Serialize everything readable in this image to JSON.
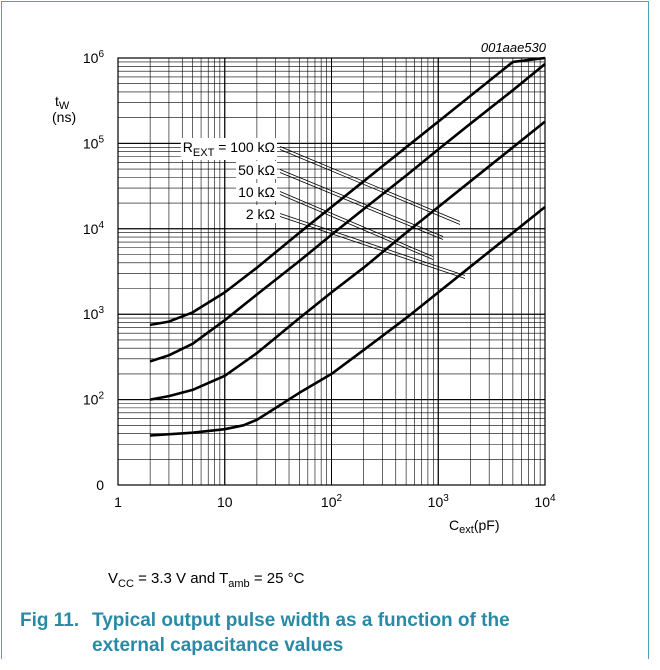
{
  "chart_data": {
    "type": "line",
    "code": "001aae530",
    "ylabel": {
      "symbol": "t",
      "sub": "W",
      "unit": "(ns)"
    },
    "xlabel": {
      "symbol": "C",
      "sub": "ext",
      "unit": "(pF)"
    },
    "x_scale": "log",
    "y_scale": "log",
    "xlim": [
      1,
      10000
    ],
    "ylim": [
      10,
      1000000
    ],
    "x_ticks": [
      {
        "value": 1,
        "base": "1",
        "exp": ""
      },
      {
        "value": 10,
        "base": "10",
        "exp": ""
      },
      {
        "value": 100,
        "base": "10",
        "exp": "2"
      },
      {
        "value": 1000,
        "base": "10",
        "exp": "3"
      },
      {
        "value": 10000,
        "base": "10",
        "exp": "4"
      }
    ],
    "y_ticks": [
      {
        "value": 10,
        "base": "0",
        "exp": ""
      },
      {
        "value": 100,
        "base": "10",
        "exp": "2"
      },
      {
        "value": 1000,
        "base": "10",
        "exp": "3"
      },
      {
        "value": 10000,
        "base": "10",
        "exp": "4"
      },
      {
        "value": 100000,
        "base": "10",
        "exp": "5"
      },
      {
        "value": 1000000,
        "base": "10",
        "exp": "6"
      }
    ],
    "grid": true,
    "series": [
      {
        "name": "REXT = 100 kΩ",
        "label_main": "R",
        "label_sub": "EXT",
        "label_value": " = 100 kΩ",
        "x": [
          2,
          3,
          5,
          10,
          20,
          50,
          100,
          200,
          500,
          1000,
          2000,
          5000,
          10000
        ],
        "y": [
          750,
          820,
          1050,
          1800,
          3500,
          9000,
          18000,
          36000,
          90000,
          180000,
          360000,
          900000,
          1800000
        ]
      },
      {
        "name": "50 kΩ",
        "label_main": "",
        "label_sub": "",
        "label_value": "50 kΩ",
        "x": [
          2,
          3,
          5,
          10,
          20,
          50,
          100,
          200,
          500,
          1000,
          2000,
          5000,
          10000
        ],
        "y": [
          280,
          330,
          450,
          850,
          1700,
          4200,
          8500,
          17000,
          42000,
          85000,
          170000,
          420000,
          850000
        ]
      },
      {
        "name": "10 kΩ",
        "label_main": "",
        "label_sub": "",
        "label_value": "10 kΩ",
        "x": [
          2,
          3,
          5,
          10,
          20,
          50,
          100,
          200,
          500,
          1000,
          2000,
          5000,
          10000
        ],
        "y": [
          100,
          110,
          130,
          190,
          350,
          900,
          1800,
          3500,
          9000,
          18000,
          36000,
          90000,
          180000
        ]
      },
      {
        "name": "2 kΩ",
        "label_main": "",
        "label_sub": "",
        "label_value": "2 kΩ",
        "x": [
          2,
          5,
          10,
          15,
          20,
          30,
          50,
          100,
          200,
          500,
          1000,
          2000,
          5000,
          10000
        ],
        "y": [
          38,
          41,
          45,
          50,
          58,
          80,
          120,
          200,
          380,
          900,
          1800,
          3600,
          9000,
          18000
        ]
      }
    ]
  },
  "conditions": {
    "vcc_main": "V",
    "vcc_sub": "CC",
    "vcc_value": " = 3.3 V and T",
    "tamb_sub": "amb",
    "tamb_value": " = 25 °C"
  },
  "caption": {
    "number": "Fig 11.",
    "line1": "Typical output pulse width as a function of the",
    "line2": "external capacitance values"
  },
  "colors": {
    "border": "#4aa3b8",
    "caption": "#2a8aa6"
  }
}
